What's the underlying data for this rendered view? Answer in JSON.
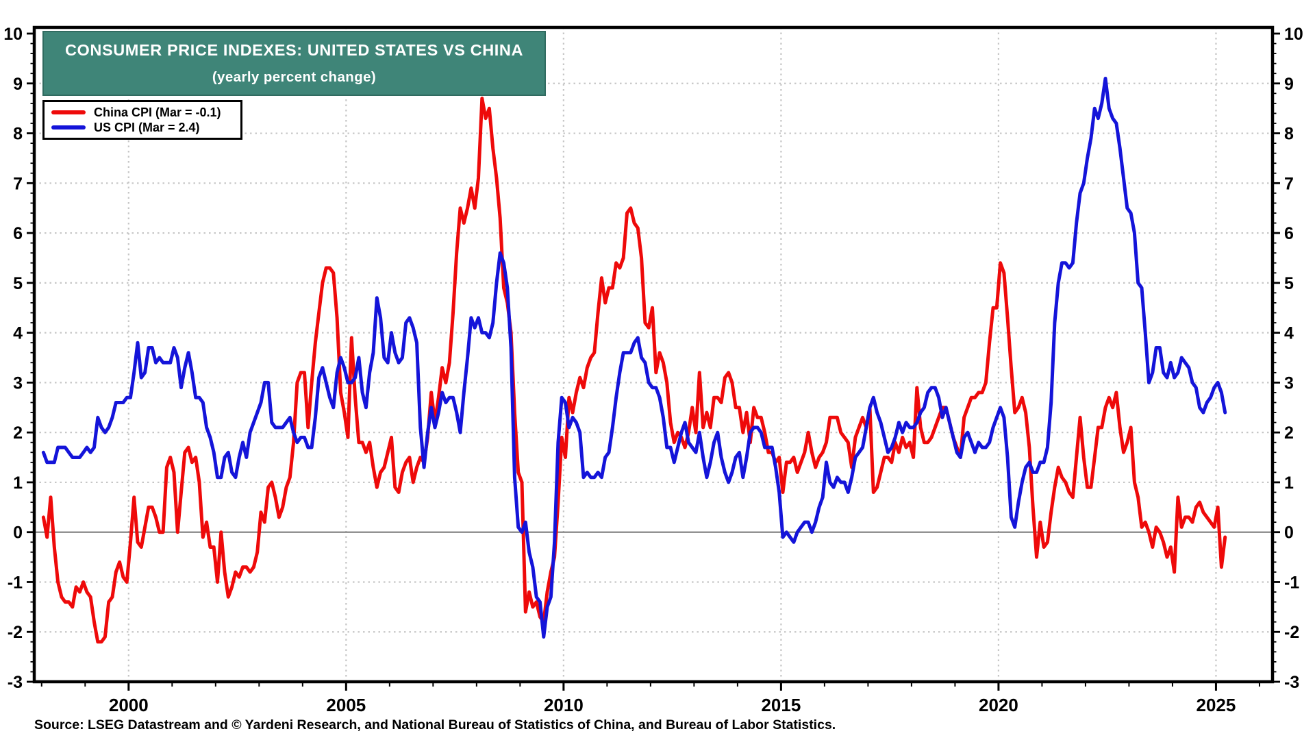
{
  "title": {
    "line1": "CONSUMER PRICE INDEXES: UNITED STATES VS CHINA",
    "line2": "(yearly percent change)"
  },
  "source": "Source: LSEG Datastream and © Yardeni Research, and National Bureau of Statistics of China, and Bureau of Labor Statistics.",
  "colors": {
    "banner_background": "#3F8578",
    "banner_text": "#ffffff",
    "china_line": "#EE0A0A",
    "us_line": "#1414D9",
    "grid_dotted": "#c6c6c6",
    "zero_line": "#7d7d7d",
    "axis": "#000000"
  },
  "legend": {
    "items": [
      {
        "label": "China CPI (Mar = -0.1)",
        "series": "china"
      },
      {
        "label": "US CPI (Mar = 2.4)",
        "series": "us"
      }
    ]
  },
  "chart_data": {
    "type": "line",
    "title": "CONSUMER PRICE INDEXES: UNITED STATES VS CHINA",
    "subtitle": "(yearly percent change)",
    "ylabel": "yearly percent change",
    "x_domain": [
      1997.83,
      2026.3
    ],
    "ylim": [
      -3,
      10
    ],
    "x_major_ticks": [
      2000,
      2005,
      2010,
      2015,
      2020,
      2025
    ],
    "x_minor_tick_step_years": 1,
    "y_major_ticks": [
      -3,
      -2,
      -1,
      0,
      1,
      2,
      3,
      4,
      5,
      6,
      7,
      8,
      9,
      10
    ],
    "y_minor_tick_step": 0.2,
    "grid": "horizontal dotted at integers, vertical dotted at 5-year marks, solid gray zero line",
    "legend_position": "top-left",
    "frequency": "monthly",
    "start_year": 1998,
    "start_month": 1,
    "end_label": "Mar 2025",
    "series": [
      {
        "name": "China CPI (Mar = -0.1)",
        "color_key": "china_line",
        "values": [
          0.3,
          -0.1,
          0.7,
          -0.3,
          -1.0,
          -1.3,
          -1.4,
          -1.4,
          -1.5,
          -1.1,
          -1.2,
          -1.0,
          -1.2,
          -1.3,
          -1.8,
          -2.2,
          -2.2,
          -2.1,
          -1.4,
          -1.3,
          -0.8,
          -0.6,
          -0.9,
          -1.0,
          -0.2,
          0.7,
          -0.2,
          -0.3,
          0.1,
          0.5,
          0.5,
          0.3,
          0.0,
          0.0,
          1.3,
          1.5,
          1.2,
          0.0,
          0.8,
          1.6,
          1.7,
          1.4,
          1.5,
          1.0,
          -0.1,
          0.2,
          -0.3,
          -0.3,
          -1.0,
          0.0,
          -0.8,
          -1.3,
          -1.1,
          -0.8,
          -0.9,
          -0.7,
          -0.7,
          -0.8,
          -0.7,
          -0.4,
          0.4,
          0.2,
          0.9,
          1.0,
          0.7,
          0.3,
          0.5,
          0.9,
          1.1,
          1.8,
          3.0,
          3.2,
          3.2,
          2.1,
          3.0,
          3.8,
          4.4,
          5.0,
          5.3,
          5.3,
          5.2,
          4.3,
          2.8,
          2.4,
          1.9,
          3.9,
          2.7,
          1.8,
          1.8,
          1.6,
          1.8,
          1.3,
          0.9,
          1.2,
          1.3,
          1.6,
          1.9,
          0.9,
          0.8,
          1.2,
          1.4,
          1.5,
          1.0,
          1.3,
          1.5,
          1.4,
          1.9,
          2.8,
          2.2,
          2.7,
          3.3,
          3.0,
          3.4,
          4.4,
          5.6,
          6.5,
          6.2,
          6.5,
          6.9,
          6.5,
          7.1,
          8.7,
          8.3,
          8.5,
          7.7,
          7.1,
          6.3,
          4.9,
          4.6,
          4.0,
          2.4,
          1.2,
          1.0,
          -1.6,
          -1.2,
          -1.5,
          -1.4,
          -1.7,
          -1.8,
          -1.2,
          -0.8,
          -0.5,
          0.6,
          1.9,
          1.5,
          2.7,
          2.4,
          2.8,
          3.1,
          2.9,
          3.3,
          3.5,
          3.6,
          4.4,
          5.1,
          4.6,
          4.9,
          4.9,
          5.4,
          5.3,
          5.5,
          6.4,
          6.5,
          6.2,
          6.1,
          5.5,
          4.2,
          4.1,
          4.5,
          3.2,
          3.6,
          3.4,
          3.0,
          2.2,
          1.8,
          2.0,
          1.9,
          1.7,
          2.0,
          2.5,
          2.0,
          3.2,
          2.1,
          2.4,
          2.1,
          2.7,
          2.7,
          2.6,
          3.1,
          3.2,
          3.0,
          2.5,
          2.5,
          2.0,
          2.4,
          1.8,
          2.5,
          2.3,
          2.3,
          2.0,
          1.6,
          1.6,
          1.4,
          1.5,
          0.8,
          1.4,
          1.4,
          1.5,
          1.2,
          1.4,
          1.6,
          2.0,
          1.6,
          1.3,
          1.5,
          1.6,
          1.8,
          2.3,
          2.3,
          2.3,
          2.0,
          1.9,
          1.8,
          1.3,
          1.9,
          2.1,
          2.3,
          2.1,
          2.5,
          0.8,
          0.9,
          1.2,
          1.5,
          1.5,
          1.4,
          1.8,
          1.6,
          1.9,
          1.7,
          1.8,
          1.5,
          2.9,
          2.1,
          1.8,
          1.8,
          1.9,
          2.1,
          2.3,
          2.5,
          2.5,
          2.2,
          1.9,
          1.7,
          1.5,
          2.3,
          2.5,
          2.7,
          2.7,
          2.8,
          2.8,
          3.0,
          3.8,
          4.5,
          4.5,
          5.4,
          5.2,
          4.3,
          3.3,
          2.4,
          2.5,
          2.7,
          2.4,
          1.7,
          0.5,
          -0.5,
          0.2,
          -0.3,
          -0.2,
          0.4,
          0.9,
          1.3,
          1.1,
          1.0,
          0.8,
          0.7,
          1.5,
          2.3,
          1.5,
          0.9,
          0.9,
          1.5,
          2.1,
          2.1,
          2.5,
          2.7,
          2.5,
          2.8,
          2.1,
          1.6,
          1.8,
          2.1,
          1.0,
          0.7,
          0.1,
          0.2,
          0.0,
          -0.3,
          0.1,
          0.0,
          -0.2,
          -0.5,
          -0.3,
          -0.8,
          0.7,
          0.1,
          0.3,
          0.3,
          0.2,
          0.5,
          0.6,
          0.4,
          0.3,
          0.2,
          0.1,
          0.5,
          -0.7,
          -0.1
        ]
      },
      {
        "name": "US CPI (Mar = 2.4)",
        "color_key": "us_line",
        "values": [
          1.6,
          1.4,
          1.4,
          1.4,
          1.7,
          1.7,
          1.7,
          1.6,
          1.5,
          1.5,
          1.5,
          1.6,
          1.7,
          1.6,
          1.7,
          2.3,
          2.1,
          2.0,
          2.1,
          2.3,
          2.6,
          2.6,
          2.6,
          2.7,
          2.7,
          3.2,
          3.8,
          3.1,
          3.2,
          3.7,
          3.7,
          3.4,
          3.5,
          3.4,
          3.4,
          3.4,
          3.7,
          3.5,
          2.9,
          3.3,
          3.6,
          3.2,
          2.7,
          2.7,
          2.6,
          2.1,
          1.9,
          1.6,
          1.1,
          1.1,
          1.5,
          1.6,
          1.2,
          1.1,
          1.5,
          1.8,
          1.5,
          2.0,
          2.2,
          2.4,
          2.6,
          3.0,
          3.0,
          2.2,
          2.1,
          2.1,
          2.1,
          2.2,
          2.3,
          2.0,
          1.8,
          1.9,
          1.9,
          1.7,
          1.7,
          2.3,
          3.1,
          3.3,
          3.0,
          2.7,
          2.5,
          3.2,
          3.5,
          3.3,
          3.0,
          3.0,
          3.1,
          3.5,
          2.8,
          2.5,
          3.2,
          3.6,
          4.7,
          4.3,
          3.5,
          3.4,
          4.0,
          3.6,
          3.4,
          3.5,
          4.2,
          4.3,
          4.1,
          3.8,
          2.1,
          1.3,
          2.0,
          2.5,
          2.1,
          2.4,
          2.8,
          2.6,
          2.7,
          2.7,
          2.4,
          2.0,
          2.8,
          3.5,
          4.3,
          4.1,
          4.3,
          4.0,
          4.0,
          3.9,
          4.2,
          5.0,
          5.6,
          5.4,
          4.9,
          3.7,
          1.1,
          0.1,
          0.0,
          0.2,
          -0.4,
          -0.7,
          -1.3,
          -1.4,
          -2.1,
          -1.5,
          -1.3,
          -0.2,
          1.8,
          2.7,
          2.6,
          2.1,
          2.3,
          2.2,
          2.0,
          1.1,
          1.2,
          1.1,
          1.1,
          1.2,
          1.1,
          1.5,
          1.6,
          2.1,
          2.7,
          3.2,
          3.6,
          3.6,
          3.6,
          3.8,
          3.9,
          3.5,
          3.4,
          3.0,
          2.9,
          2.9,
          2.7,
          2.3,
          1.7,
          1.7,
          1.4,
          1.7,
          2.0,
          2.2,
          1.8,
          1.7,
          1.6,
          2.0,
          1.5,
          1.1,
          1.4,
          1.8,
          2.0,
          1.5,
          1.2,
          1.0,
          1.2,
          1.5,
          1.6,
          1.1,
          1.5,
          2.0,
          2.1,
          2.1,
          2.0,
          1.7,
          1.7,
          1.7,
          1.3,
          0.8,
          -0.1,
          0.0,
          -0.1,
          -0.2,
          0.0,
          0.1,
          0.2,
          0.2,
          0.0,
          0.2,
          0.5,
          0.7,
          1.4,
          1.0,
          0.9,
          1.1,
          1.0,
          1.0,
          0.8,
          1.1,
          1.5,
          1.6,
          1.7,
          2.1,
          2.5,
          2.7,
          2.4,
          2.2,
          1.9,
          1.6,
          1.7,
          1.9,
          2.2,
          2.0,
          2.2,
          2.1,
          2.1,
          2.2,
          2.4,
          2.5,
          2.8,
          2.9,
          2.9,
          2.7,
          2.3,
          2.5,
          2.2,
          1.9,
          1.6,
          1.5,
          1.9,
          2.0,
          1.8,
          1.6,
          1.8,
          1.7,
          1.7,
          1.8,
          2.1,
          2.3,
          2.5,
          2.3,
          1.5,
          0.3,
          0.1,
          0.6,
          1.0,
          1.3,
          1.4,
          1.2,
          1.2,
          1.4,
          1.4,
          1.7,
          2.6,
          4.2,
          5.0,
          5.4,
          5.4,
          5.3,
          5.4,
          6.2,
          6.8,
          7.0,
          7.5,
          7.9,
          8.5,
          8.3,
          8.6,
          9.1,
          8.5,
          8.3,
          8.2,
          7.7,
          7.1,
          6.5,
          6.4,
          6.0,
          5.0,
          4.9,
          4.0,
          3.0,
          3.2,
          3.7,
          3.7,
          3.2,
          3.1,
          3.4,
          3.1,
          3.2,
          3.5,
          3.4,
          3.3,
          3.0,
          2.9,
          2.5,
          2.4,
          2.6,
          2.7,
          2.9,
          3.0,
          2.8,
          2.4
        ]
      }
    ]
  }
}
